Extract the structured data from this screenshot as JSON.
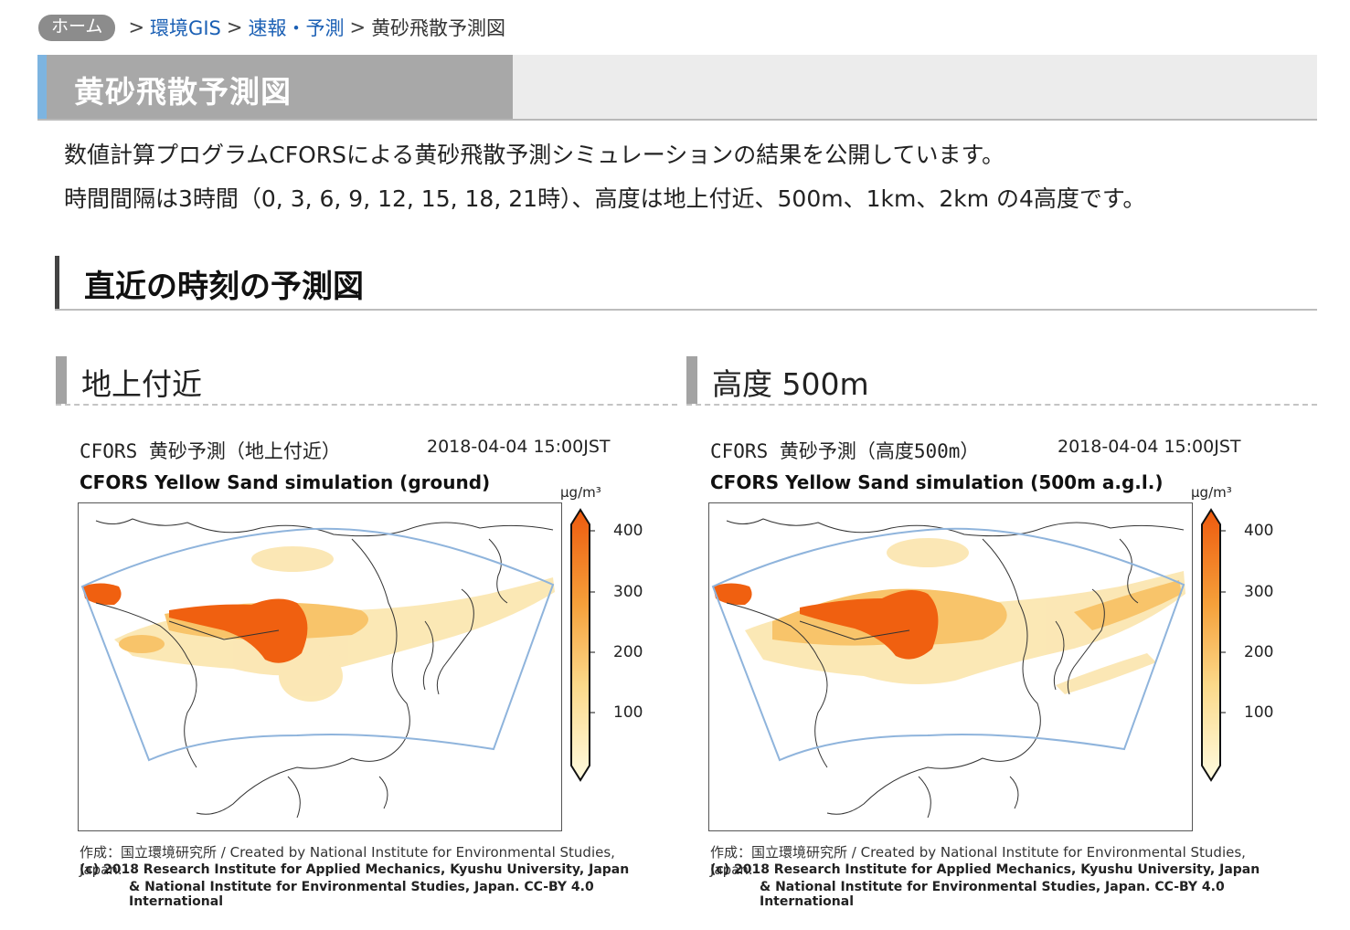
{
  "breadcrumb": {
    "home": "ホーム",
    "sep": ">",
    "items": [
      "環境GIS",
      "速報・予測"
    ],
    "current": "黄砂飛散予測図"
  },
  "page": {
    "title": "黄砂飛散予測図",
    "desc1": "数値計算プログラムCFORSによる黄砂飛散予測シミュレーションの結果を公開しています。",
    "desc2": "時間間隔は3時間（0, 3, 6, 9, 12, 15, 18, 21時）、高度は地上付近、500m、1km、2km の4高度です。"
  },
  "section": {
    "title": "直近の時刻の予測図"
  },
  "panels": [
    {
      "heading": "地上付近",
      "map_title_jp": "CFORS 黄砂予測（地上付近）",
      "timestamp": "2018-04-04 15:00JST",
      "map_title_en": "CFORS Yellow Sand simulation (ground)",
      "unit": "μg/m³",
      "ticks": [
        "400",
        "300",
        "200",
        "100"
      ],
      "credit1": "作成：国立環境研究所 / Created by National Institute for Environmental Studies, Japan.",
      "credit2": "(c) 2018 Research Institute for Applied Mechanics, Kyushu University, Japan",
      "credit3": "& National Institute for Environmental Studies, Japan.   CC-BY 4.0 International"
    },
    {
      "heading": "高度 500m",
      "map_title_jp": "CFORS 黄砂予測（高度500m）",
      "timestamp": "2018-04-04 15:00JST",
      "map_title_en": "CFORS Yellow Sand simulation (500m a.g.l.)",
      "unit": "μg/m³",
      "ticks": [
        "400",
        "300",
        "200",
        "100"
      ],
      "credit1": "作成：国立環境研究所 / Created by National Institute for Environmental Studies, Japan.",
      "credit2": "(c) 2018 Research Institute for Applied Mechanics, Kyushu University, Japan",
      "credit3": "& National Institute for Environmental Studies, Japan.   CC-BY 4.0 International"
    }
  ],
  "colors": {
    "link": "#1a5fb4",
    "accent": "#7db4e0",
    "dust_high": "#f06010",
    "dust_mid": "#f6a840",
    "dust_low": "#fbe0a0",
    "domain_outline": "#8fb4dc"
  }
}
